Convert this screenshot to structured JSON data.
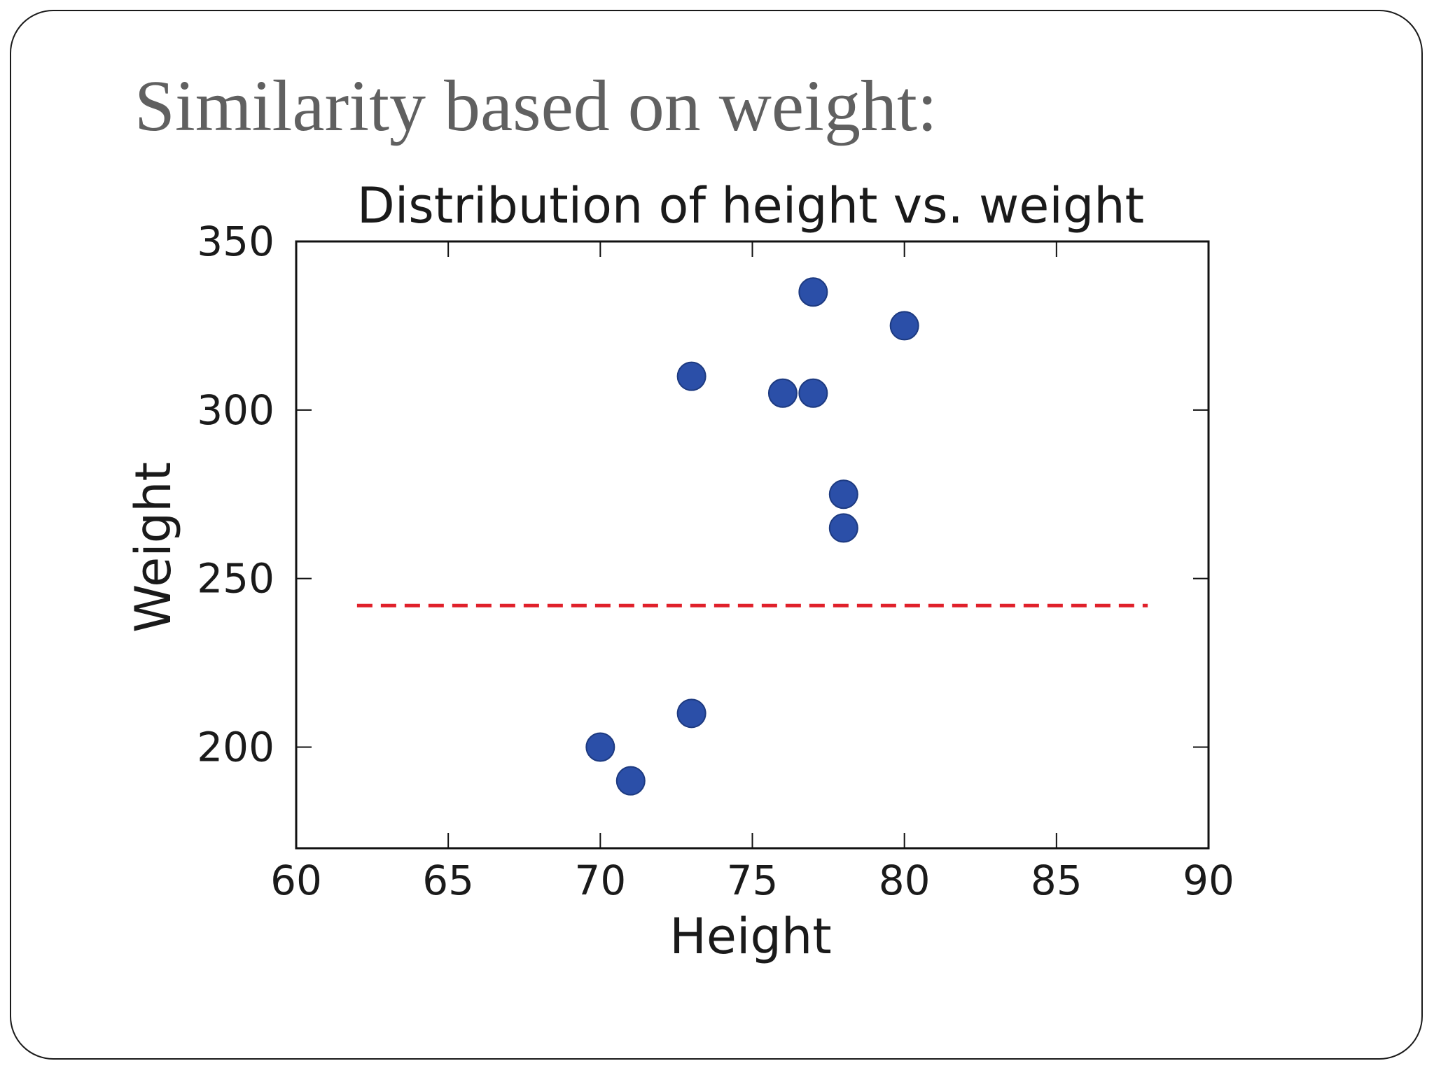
{
  "slide": {
    "title": "Similarity based on weight:"
  },
  "chart_data": {
    "type": "scatter",
    "title": "Distribution of height vs. weight",
    "xlabel": "Height",
    "ylabel": "Weight",
    "xlim": [
      60,
      90
    ],
    "ylim": [
      170,
      350
    ],
    "xticks": [
      60,
      65,
      70,
      75,
      80,
      85,
      90
    ],
    "yticks": [
      200,
      250,
      300,
      350
    ],
    "grid": false,
    "series": [
      {
        "name": "points",
        "color": "#2b4fa8",
        "x": [
          77,
          80,
          73,
          76,
          77,
          78,
          78,
          73,
          70,
          71
        ],
        "y": [
          335,
          325,
          310,
          305,
          305,
          275,
          265,
          210,
          200,
          190
        ]
      }
    ],
    "reference_line": {
      "style": "dashed",
      "color": "#e0202a",
      "x": [
        62,
        88
      ],
      "y": [
        242,
        242
      ]
    }
  }
}
